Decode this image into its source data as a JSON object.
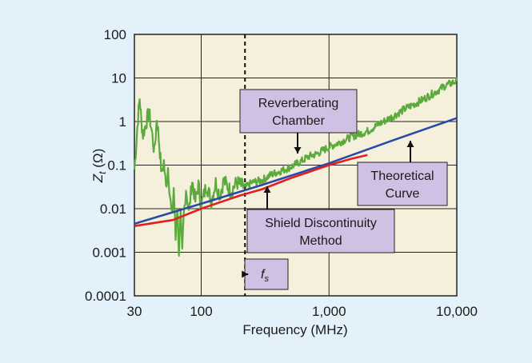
{
  "chart_data": {
    "type": "line",
    "xlabel": "Frequency (MHz)",
    "ylabel": {
      "main": "Z",
      "sub": "t",
      "unit": " (Ω)"
    },
    "x_scale": "log",
    "y_scale": "log",
    "xlim": [
      30,
      10000
    ],
    "ylim": [
      0.0001,
      100
    ],
    "x_ticks": [
      {
        "value": 30,
        "label": "30"
      },
      {
        "value": 100,
        "label": "100"
      },
      {
        "value": 1000,
        "label": "1,000"
      },
      {
        "value": 10000,
        "label": "10,000"
      }
    ],
    "y_ticks": [
      {
        "value": 0.0001,
        "label": "0.0001"
      },
      {
        "value": 0.001,
        "label": "0.001"
      },
      {
        "value": 0.01,
        "label": "0.01"
      },
      {
        "value": 0.1,
        "label": "0.1"
      },
      {
        "value": 1,
        "label": "1"
      },
      {
        "value": 10,
        "label": "10"
      },
      {
        "value": 100,
        "label": "100"
      }
    ],
    "grid": true,
    "series": [
      {
        "key": "reverberating",
        "color": "#5aaa3c",
        "noisy": true,
        "points": [
          [
            30,
            0.08
          ],
          [
            31,
            0.3
          ],
          [
            32,
            1.2
          ],
          [
            33,
            3.5
          ],
          [
            34,
            1.0
          ],
          [
            35,
            0.5
          ],
          [
            37,
            0.9
          ],
          [
            39,
            1.7
          ],
          [
            41,
            0.6
          ],
          [
            43,
            0.2
          ],
          [
            45,
            1.2
          ],
          [
            47,
            0.3
          ],
          [
            49,
            0.06
          ],
          [
            51,
            0.12
          ],
          [
            53,
            0.03
          ],
          [
            55,
            0.09
          ],
          [
            57,
            0.02
          ],
          [
            59,
            0.006
          ],
          [
            61,
            0.03
          ],
          [
            63,
            0.002
          ],
          [
            65,
            0.012
          ],
          [
            67,
            0.001
          ],
          [
            69,
            0.006
          ],
          [
            71,
            0.0009
          ],
          [
            73,
            0.007
          ],
          [
            76,
            0.03
          ],
          [
            80,
            0.008
          ],
          [
            85,
            0.045
          ],
          [
            90,
            0.015
          ],
          [
            95,
            0.035
          ],
          [
            100,
            0.012
          ],
          [
            110,
            0.035
          ],
          [
            120,
            0.015
          ],
          [
            130,
            0.04
          ],
          [
            140,
            0.02
          ],
          [
            150,
            0.045
          ],
          [
            170,
            0.025
          ],
          [
            190,
            0.04
          ],
          [
            220,
            0.03
          ],
          [
            250,
            0.04
          ],
          [
            300,
            0.045
          ],
          [
            350,
            0.06
          ],
          [
            400,
            0.07
          ],
          [
            500,
            0.09
          ],
          [
            600,
            0.12
          ],
          [
            700,
            0.16
          ],
          [
            800,
            0.18
          ],
          [
            1000,
            0.26
          ],
          [
            1200,
            0.33
          ],
          [
            1500,
            0.45
          ],
          [
            2000,
            0.6
          ],
          [
            2500,
            0.9
          ],
          [
            3000,
            1.2
          ],
          [
            4000,
            2.0
          ],
          [
            5000,
            2.8
          ],
          [
            6000,
            3.8
          ],
          [
            7000,
            5.0
          ],
          [
            8000,
            6.5
          ],
          [
            9000,
            7.5
          ],
          [
            10000,
            8.5
          ]
        ]
      },
      {
        "key": "theoretical",
        "color": "#2a4aa8",
        "points": [
          [
            30,
            0.0045
          ],
          [
            100,
            0.013
          ],
          [
            300,
            0.035
          ],
          [
            1000,
            0.11
          ],
          [
            3000,
            0.35
          ],
          [
            10000,
            1.2
          ]
        ]
      },
      {
        "key": "shield",
        "color": "#e02020",
        "points": [
          [
            30,
            0.004
          ],
          [
            60,
            0.0055
          ],
          [
            100,
            0.01
          ],
          [
            200,
            0.02
          ],
          [
            300,
            0.028
          ],
          [
            500,
            0.05
          ],
          [
            800,
            0.08
          ],
          [
            1000,
            0.1
          ],
          [
            1500,
            0.14
          ],
          [
            2000,
            0.17
          ]
        ]
      }
    ],
    "fs_marker": {
      "x": 220,
      "label_main": "f",
      "label_sub": "s"
    },
    "annotations": [
      {
        "key": "reverberating",
        "line1": "Reverberating",
        "line2": "Chamber"
      },
      {
        "key": "theoretical",
        "line1": "Theoretical",
        "line2": "Curve"
      },
      {
        "key": "shield",
        "line1": "Shield Discontinuity",
        "line2": "Method"
      }
    ]
  }
}
